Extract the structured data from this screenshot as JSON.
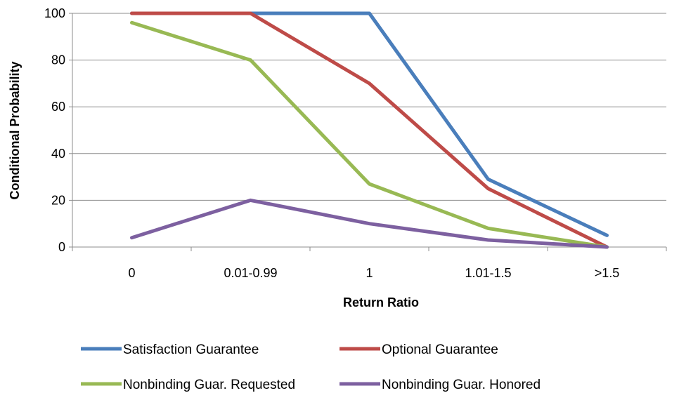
{
  "chart_data": {
    "type": "line",
    "title": "",
    "xlabel": "Return Ratio",
    "ylabel": "Conditional Probability",
    "categories": [
      "0",
      "0.01-0.99",
      "1",
      "1.01-1.5",
      ">1.5"
    ],
    "ylim": [
      0,
      100
    ],
    "yticks": [
      0,
      20,
      40,
      60,
      80,
      100
    ],
    "grid": true,
    "legend_position": "bottom",
    "series": [
      {
        "name": "Satisfaction Guarantee",
        "color": "#4a7ebb",
        "values": [
          100,
          100,
          100,
          29,
          5
        ]
      },
      {
        "name": "Optional Guarantee",
        "color": "#be4b48",
        "values": [
          100,
          100,
          70,
          25,
          0
        ]
      },
      {
        "name": "Nonbinding Guar. Requested",
        "color": "#98b954",
        "values": [
          96,
          80,
          27,
          8,
          0
        ]
      },
      {
        "name": "Nonbinding Guar. Honored",
        "color": "#7d60a0",
        "values": [
          4,
          20,
          10,
          3,
          0
        ]
      }
    ]
  }
}
